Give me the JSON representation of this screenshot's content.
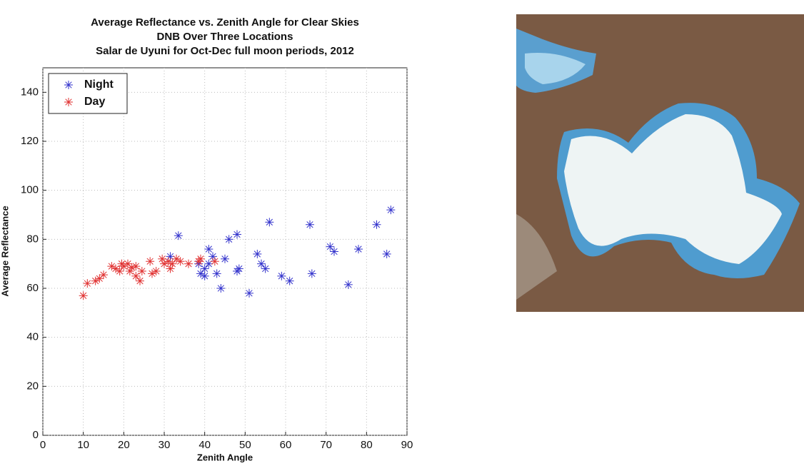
{
  "chart_data": {
    "type": "scatter",
    "title": [
      "Average Reflectance vs. Zenith Angle for Clear Skies",
      "DNB Over Three Locations",
      "Salar de Uyuni for Oct-Dec full moon periods, 2012"
    ],
    "xlabel": "Zenith Angle",
    "ylabel": "Average Reflectance",
    "xlim": [
      0,
      90
    ],
    "xticks": [
      0,
      10,
      20,
      30,
      40,
      50,
      60,
      70,
      80,
      90
    ],
    "ylim": [
      0,
      150
    ],
    "yticks": [
      0,
      20,
      40,
      60,
      80,
      100,
      120,
      140
    ],
    "grid": true,
    "legend": "upper-left",
    "series": [
      {
        "name": "Night",
        "color": "#3333cc",
        "x": [
          33.5,
          31.5,
          39,
          40,
          40,
          41,
          41,
          42,
          43,
          44,
          45,
          46,
          48,
          48,
          48.5,
          51,
          53,
          54,
          55,
          56,
          59,
          61,
          66,
          66.5,
          71,
          72,
          75.5,
          78,
          82.5,
          85,
          86,
          38.5
        ],
        "values": [
          81.5,
          73,
          66,
          65,
          68,
          76,
          70,
          73,
          66,
          60,
          72,
          80,
          82,
          67,
          68,
          58,
          74,
          70,
          68,
          87,
          65,
          63,
          86,
          66,
          77,
          75,
          61.5,
          76,
          86,
          74,
          92,
          70
        ]
      },
      {
        "name": "Day",
        "color": "#e03030",
        "x": [
          10,
          11,
          13,
          14,
          15,
          17,
          18,
          19,
          19.5,
          20,
          21,
          21.5,
          22,
          23,
          23,
          24,
          24.5,
          26.5,
          27,
          28,
          29.5,
          30,
          31,
          32,
          33,
          34,
          36,
          38.5,
          39,
          42.5,
          31.5
        ],
        "values": [
          57,
          62,
          63,
          64,
          65.5,
          69,
          68,
          67,
          70,
          69,
          70,
          67,
          68.5,
          69,
          65,
          63,
          67,
          71,
          66,
          67,
          72,
          70,
          71,
          70,
          72,
          71,
          70,
          71,
          72,
          71,
          68
        ]
      }
    ]
  }
}
